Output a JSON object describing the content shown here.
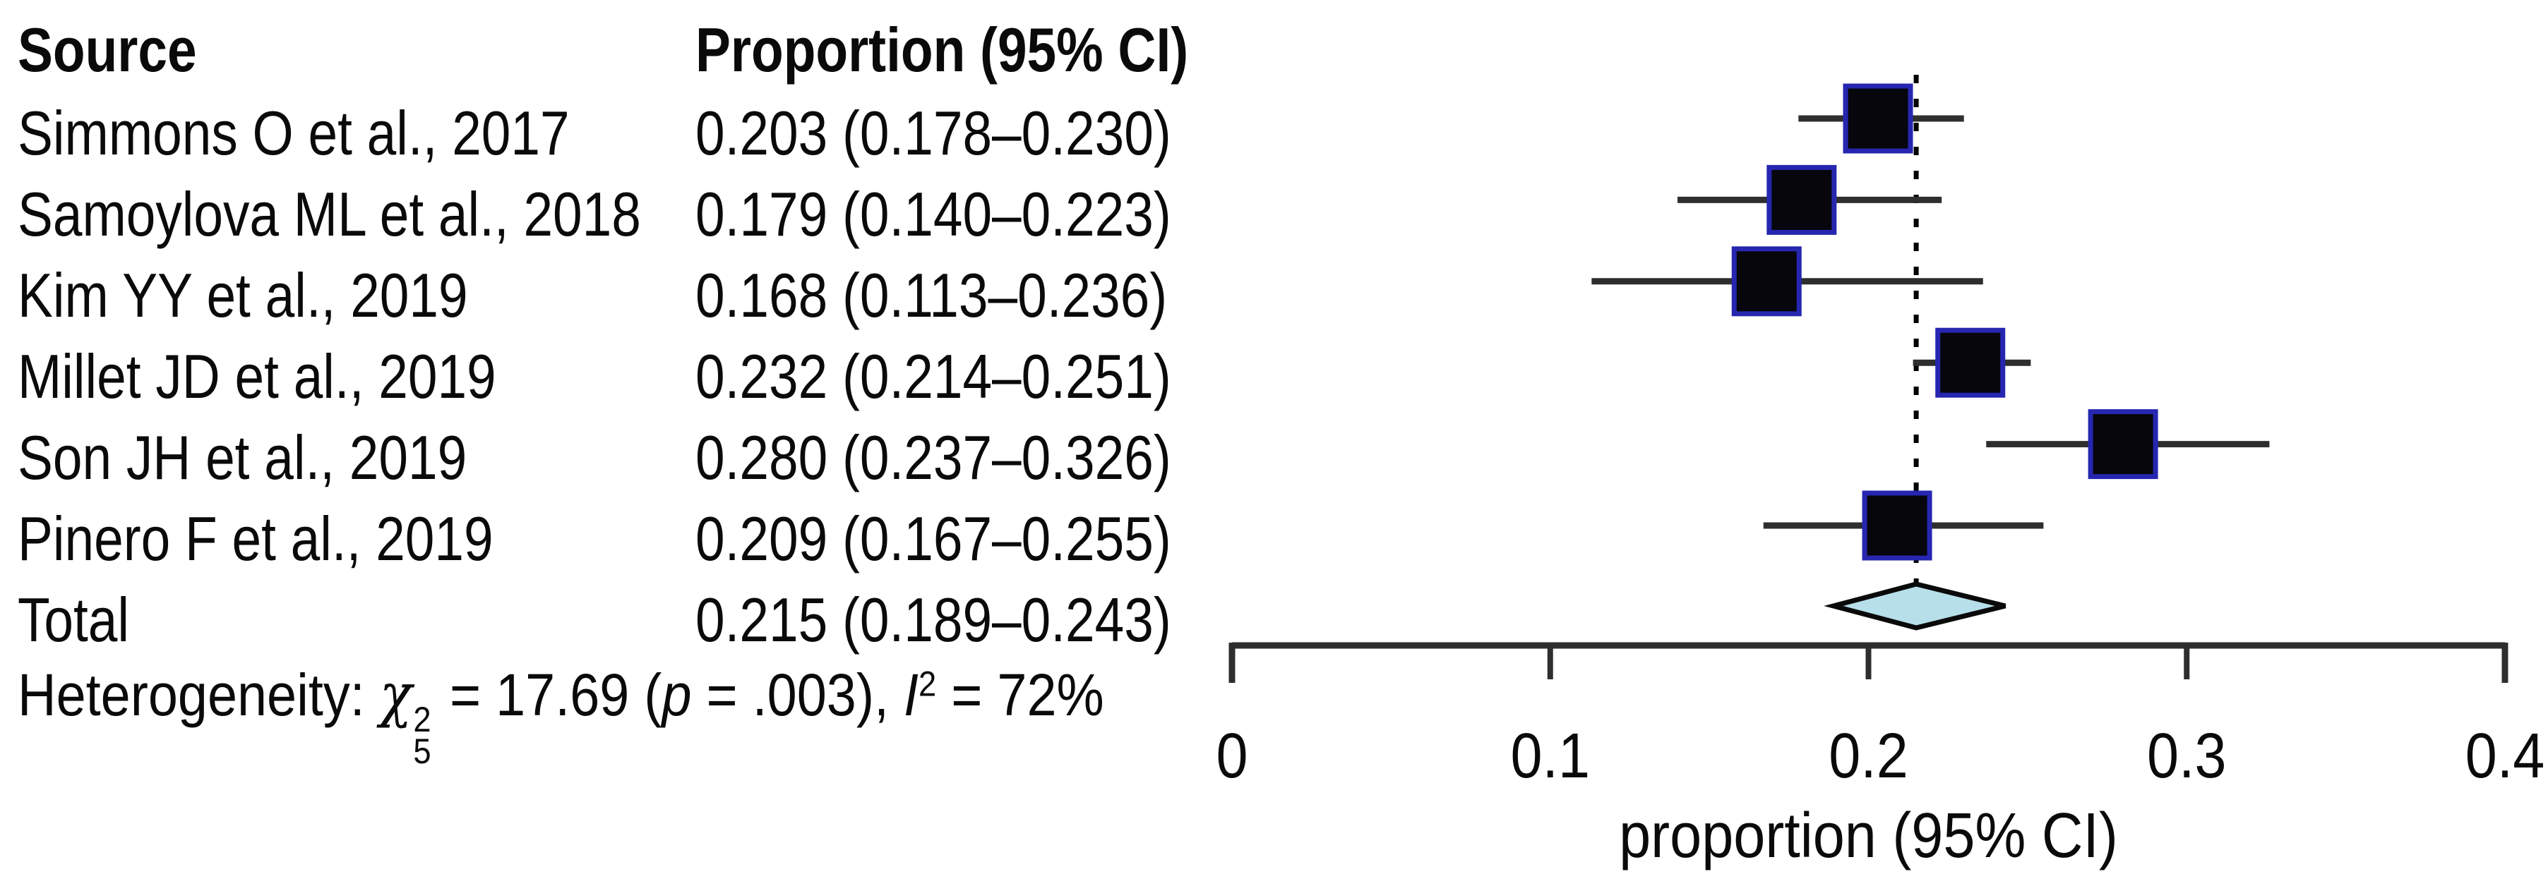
{
  "table": {
    "header": {
      "source": "Source",
      "proportion": "Proportion (95% CI)"
    },
    "rows": [
      {
        "source": "Simmons O et al., 2017",
        "proportion": "0.203 (0.178–0.230)"
      },
      {
        "source": "Samoylova ML et al., 2018",
        "proportion": "0.179 (0.140–0.223)"
      },
      {
        "source": "Kim YY et al., 2019",
        "proportion": "0.168 (0.113–0.236)"
      },
      {
        "source": "Millet JD et al., 2019",
        "proportion": "0.232 (0.214–0.251)"
      },
      {
        "source": "Son JH et al., 2019",
        "proportion": "0.280 (0.237–0.326)"
      },
      {
        "source": "Pinero F et al., 2019",
        "proportion": "0.209 (0.167–0.255)"
      }
    ],
    "total": {
      "source": "Total",
      "proportion": "0.215 (0.189–0.243)"
    }
  },
  "het": {
    "label": "Heterogeneity: ",
    "chi": "χ",
    "chi_sup": "2",
    "chi_sub": "5",
    "eq": " = 17.69 (",
    "p": "p",
    "peq": " = .003), ",
    "i": "I",
    "i_sup": "2",
    "ieq": " = 72%"
  },
  "chart_data": {
    "type": "forest",
    "title": "",
    "xlabel": "proportion (95% CI)",
    "xlim": [
      0,
      0.4
    ],
    "xticks": [
      0,
      0.1,
      0.2,
      0.3,
      0.4
    ],
    "xtick_labels": [
      "0",
      "0.1",
      "0.2",
      "0.3",
      "0.4"
    ],
    "grid": false,
    "studies": [
      {
        "label": "Simmons O et al., 2017",
        "est": 0.203,
        "lo": 0.178,
        "hi": 0.23
      },
      {
        "label": "Samoylova ML et al., 2018",
        "est": 0.179,
        "lo": 0.14,
        "hi": 0.223
      },
      {
        "label": "Kim YY et al., 2019",
        "est": 0.168,
        "lo": 0.113,
        "hi": 0.236
      },
      {
        "label": "Millet JD et al., 2019",
        "est": 0.232,
        "lo": 0.214,
        "hi": 0.251
      },
      {
        "label": "Son JH et al., 2019",
        "est": 0.28,
        "lo": 0.237,
        "hi": 0.326
      },
      {
        "label": "Pinero F et al., 2019",
        "est": 0.209,
        "lo": 0.167,
        "hi": 0.255
      }
    ],
    "total": {
      "label": "Total",
      "est": 0.215,
      "lo": 0.189,
      "hi": 0.243
    },
    "pooled_line_at": 0.215,
    "heterogeneity": "Heterogeneity: χ²₅ = 17.69 (p = .003), I² = 72%",
    "colors": {
      "square_fill": "#06060c",
      "square_border": "#2626b0",
      "ci_line": "#2e2e2e",
      "diamond_fill": "#b7dfea",
      "diamond_border": "#0a0a0a",
      "axis": "#2e2e2e",
      "dotted_line": "#000000",
      "text": "#0a0a0a"
    }
  }
}
